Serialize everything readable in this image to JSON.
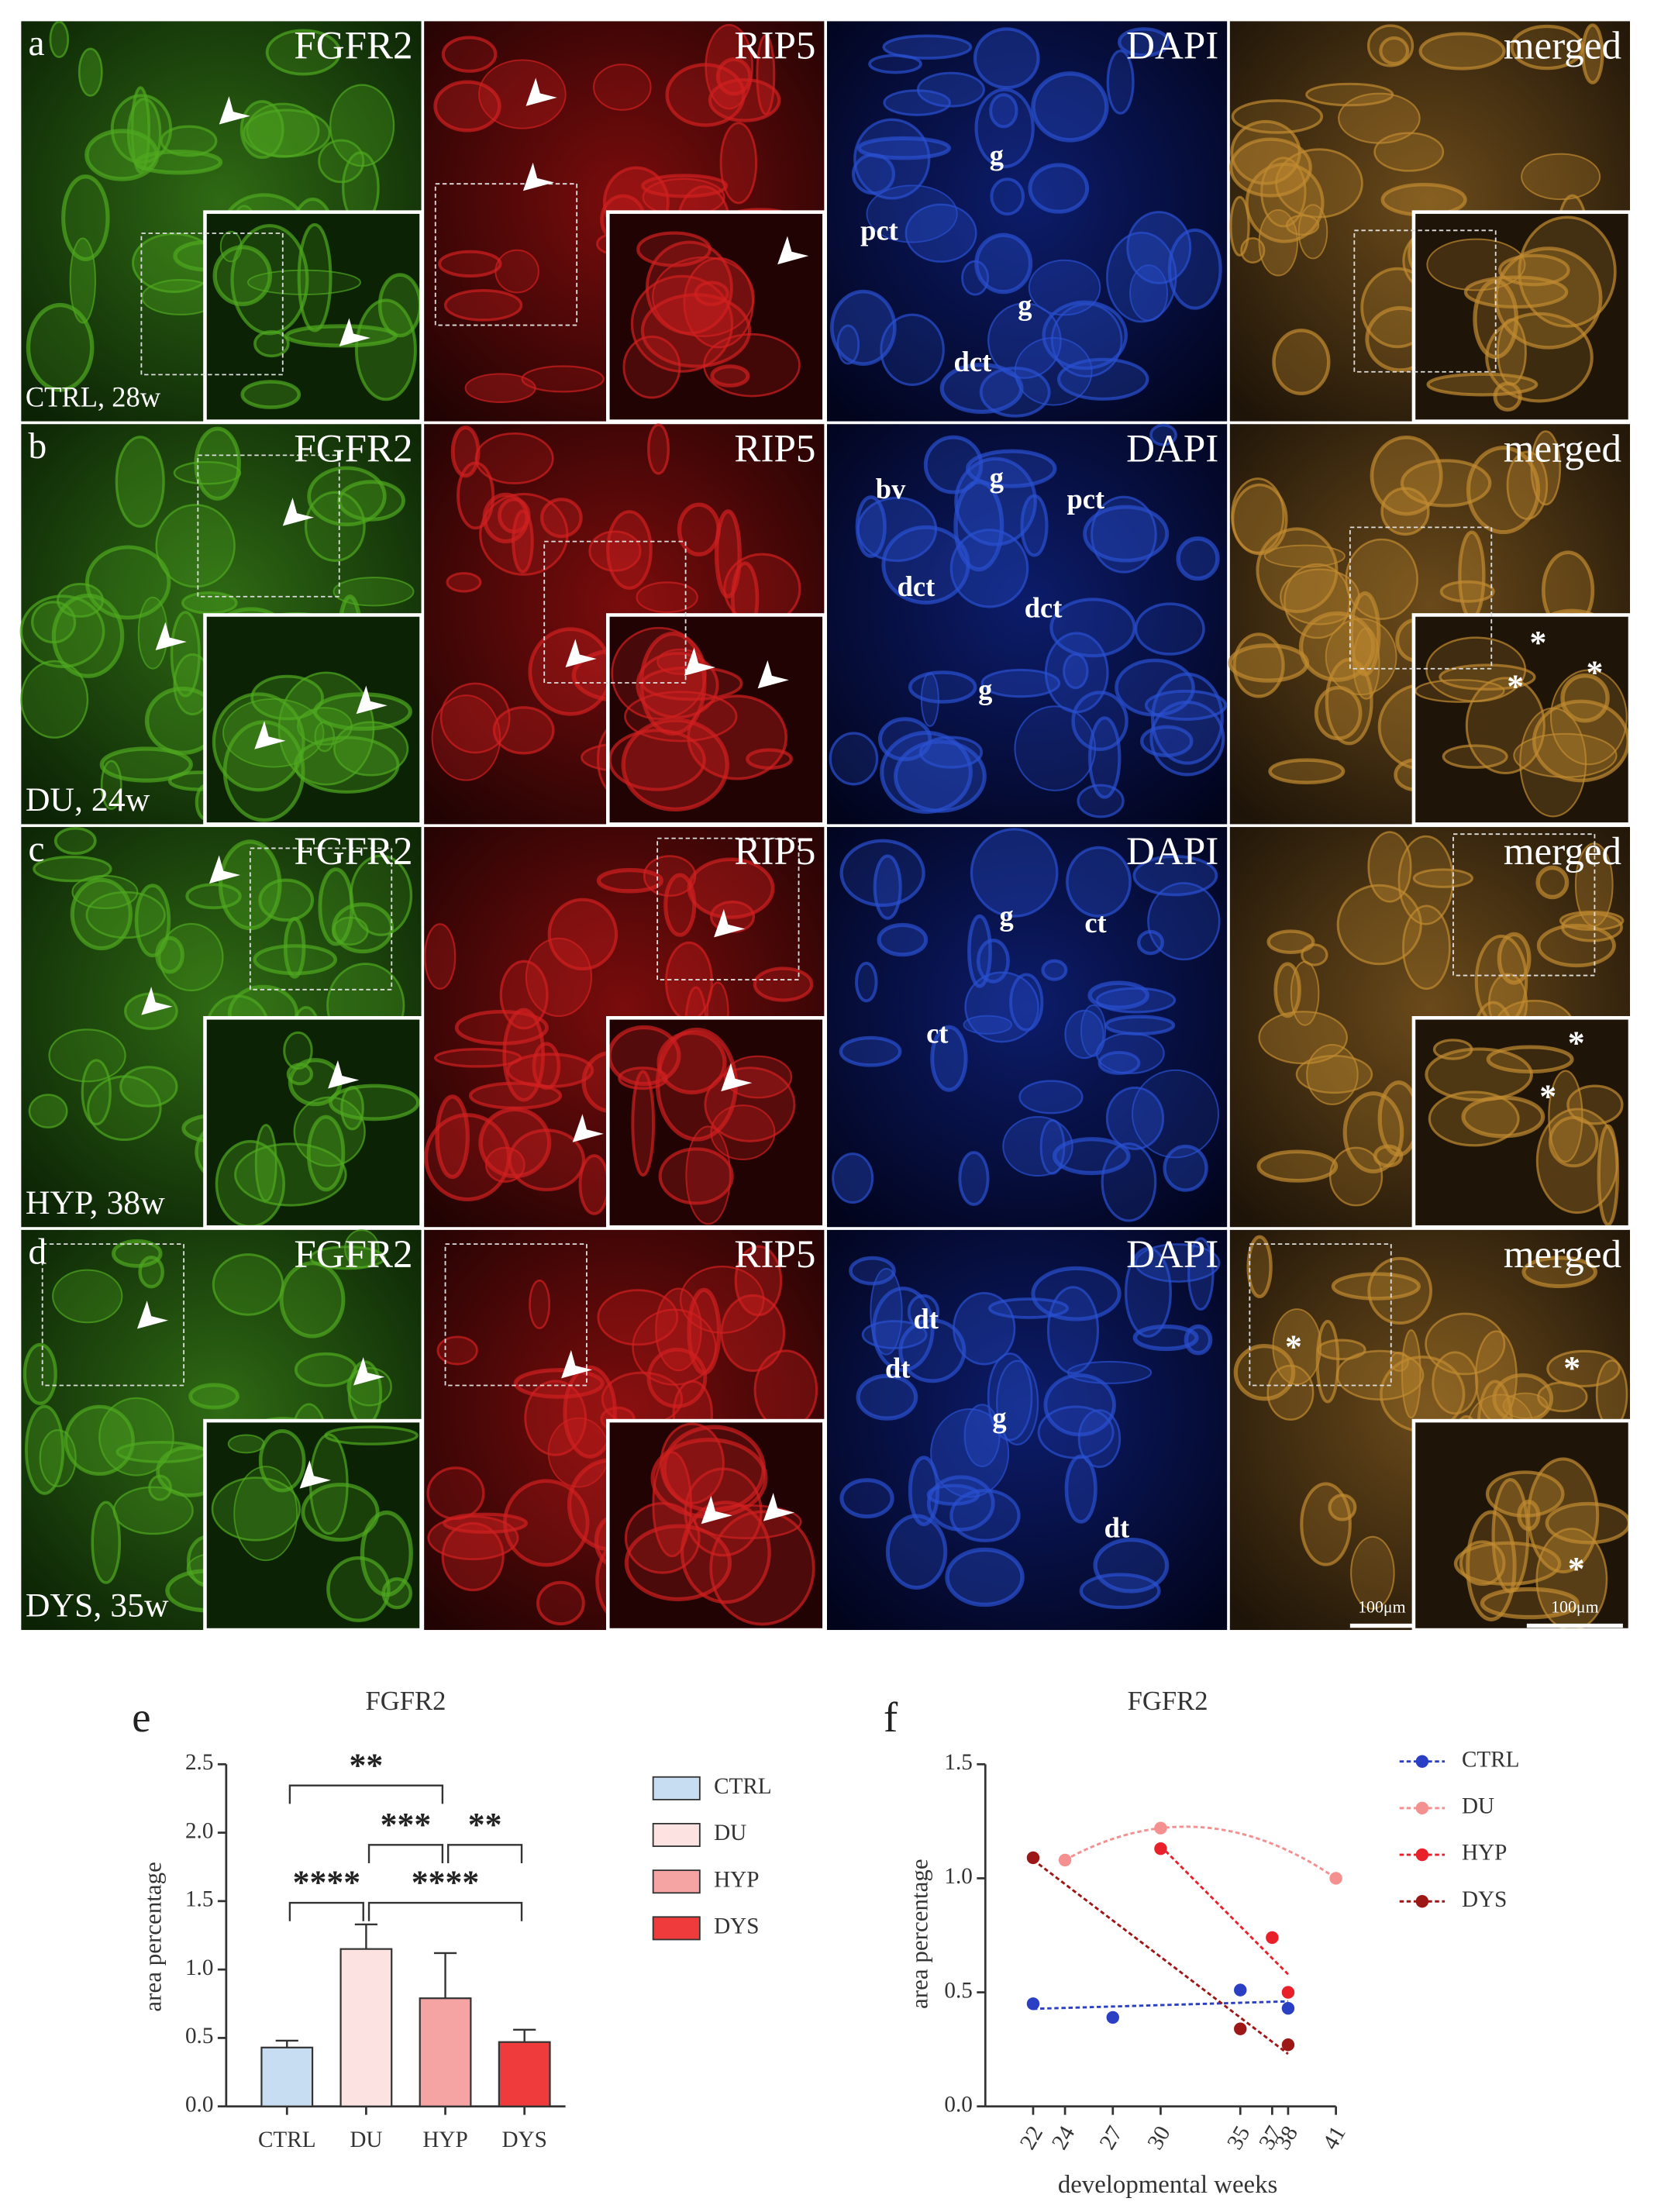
{
  "figure": {
    "channels": [
      "FGFR2",
      "RIP5",
      "DAPI",
      "merged"
    ],
    "rows": [
      {
        "letter": "a",
        "sample": "CTRL, 28w",
        "dapi_labels": [
          "g",
          "pct",
          "g",
          "dct"
        ],
        "merged_marks": []
      },
      {
        "letter": "b",
        "sample": "DU, 24w",
        "dapi_labels": [
          "bv",
          "g",
          "pct",
          "dct",
          "dct",
          "g"
        ],
        "merged_marks": [
          "*",
          "*",
          "*"
        ]
      },
      {
        "letter": "c",
        "sample": "HYP, 38w",
        "dapi_labels": [
          "g",
          "ct",
          "ct"
        ],
        "merged_marks": [
          "*",
          "*"
        ]
      },
      {
        "letter": "d",
        "sample": "DYS, 35w",
        "dapi_labels": [
          "dt",
          "dt",
          "g",
          "dt"
        ],
        "merged_marks": [
          "*",
          "*",
          "*"
        ]
      }
    ],
    "scale_bars": [
      "100μm",
      "100μm"
    ]
  },
  "chart_data": [
    {
      "type": "bar",
      "panel": "e",
      "title": "FGFR2",
      "y_label": "area percentage",
      "categories": [
        "CTRL",
        "DU",
        "HYP",
        "DYS"
      ],
      "values": [
        0.43,
        1.15,
        0.79,
        0.47
      ],
      "errors": [
        0.05,
        0.18,
        0.33,
        0.09
      ],
      "colors": [
        "#c7ddf2",
        "#fde2e2",
        "#f6a3a3",
        "#ef3b3b"
      ],
      "ylim": [
        0,
        2.5
      ],
      "yticks": [
        {
          "value": 0,
          "label": "0.0"
        },
        0.5,
        {
          "value": 1,
          "label": "1.0"
        },
        1.5,
        {
          "value": 2,
          "label": "2.0"
        },
        2.5
      ],
      "significance": [
        {
          "from": "CTRL",
          "to": "HYP",
          "label": "**"
        },
        {
          "from": "DU",
          "to": "HYP",
          "label": "***"
        },
        {
          "from": "HYP",
          "to": "DYS",
          "label": "**"
        },
        {
          "from": "CTRL",
          "to": "DU",
          "label": "****"
        },
        {
          "from": "DU",
          "to": "DYS",
          "label": "****"
        }
      ],
      "legend": "right"
    },
    {
      "type": "scatter",
      "panel": "f",
      "title": "FGFR2",
      "x_label": "developmental weeks",
      "y_label": "area percentage",
      "series": [
        {
          "name": "CTRL",
          "color": "#2b3fc4",
          "x": [
            22,
            27,
            35,
            38
          ],
          "values": [
            0.45,
            0.39,
            0.51,
            0.43
          ],
          "fit": "linear"
        },
        {
          "name": "DU",
          "color": "#f59090",
          "x": [
            24,
            30,
            41
          ],
          "values": [
            1.08,
            1.22,
            1.0
          ],
          "fit": "quadratic"
        },
        {
          "name": "HYP",
          "color": "#e8202a",
          "x": [
            30,
            37,
            38
          ],
          "values": [
            1.13,
            0.74,
            0.5
          ],
          "fit": "linear"
        },
        {
          "name": "DYS",
          "color": "#9e1717",
          "x": [
            22,
            35,
            38
          ],
          "values": [
            1.09,
            0.34,
            0.27
          ],
          "fit": "linear"
        }
      ],
      "xlim": [
        19,
        41
      ],
      "xticks": [
        22,
        24,
        27,
        30,
        35,
        37,
        38,
        41
      ],
      "ylim": [
        0,
        1.5
      ],
      "yticks": [
        {
          "value": 0,
          "label": "0.0"
        },
        0.5,
        {
          "value": 1,
          "label": "1.0"
        },
        1.5
      ],
      "legend": "right"
    }
  ]
}
